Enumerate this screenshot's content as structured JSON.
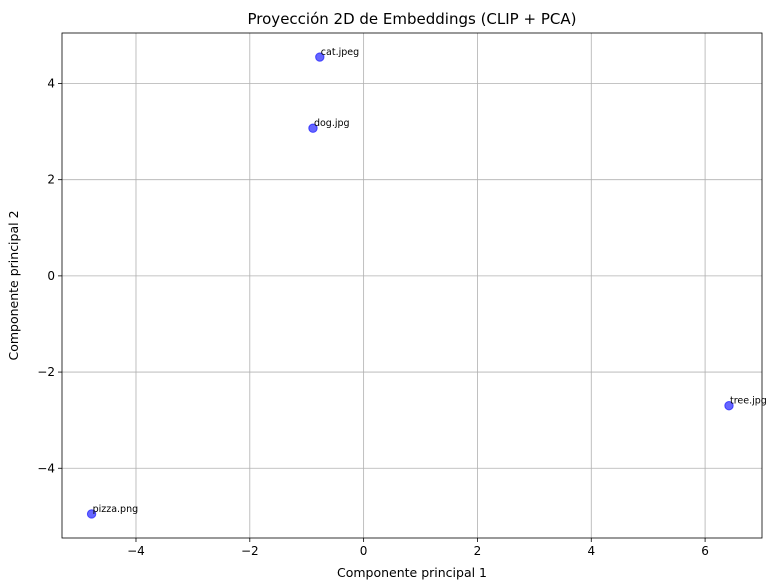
{
  "chart_data": {
    "type": "scatter",
    "title": "Proyección 2D de Embeddings (CLIP + PCA)",
    "xlabel": "Componente principal 1",
    "ylabel": "Componente principal 2",
    "xlim": [
      -5.3,
      7.0
    ],
    "ylim": [
      -5.45,
      5.05
    ],
    "xticks": [
      -4,
      -2,
      0,
      2,
      4,
      6
    ],
    "yticks": [
      -4,
      -2,
      0,
      2,
      4
    ],
    "xtick_labels": [
      "−4",
      "−2",
      "0",
      "2",
      "4",
      "6"
    ],
    "ytick_labels": [
      "−4",
      "−2",
      "0",
      "2",
      "4"
    ],
    "grid": true,
    "point_color": "#0000ff",
    "points": [
      {
        "label": "cat.jpeg",
        "x": -0.77,
        "y": 4.55
      },
      {
        "label": "dog.jpg",
        "x": -0.89,
        "y": 3.07
      },
      {
        "label": "tree.jpg",
        "x": 6.42,
        "y": -2.7
      },
      {
        "label": "pizza.png",
        "x": -4.78,
        "y": -4.95
      }
    ]
  }
}
